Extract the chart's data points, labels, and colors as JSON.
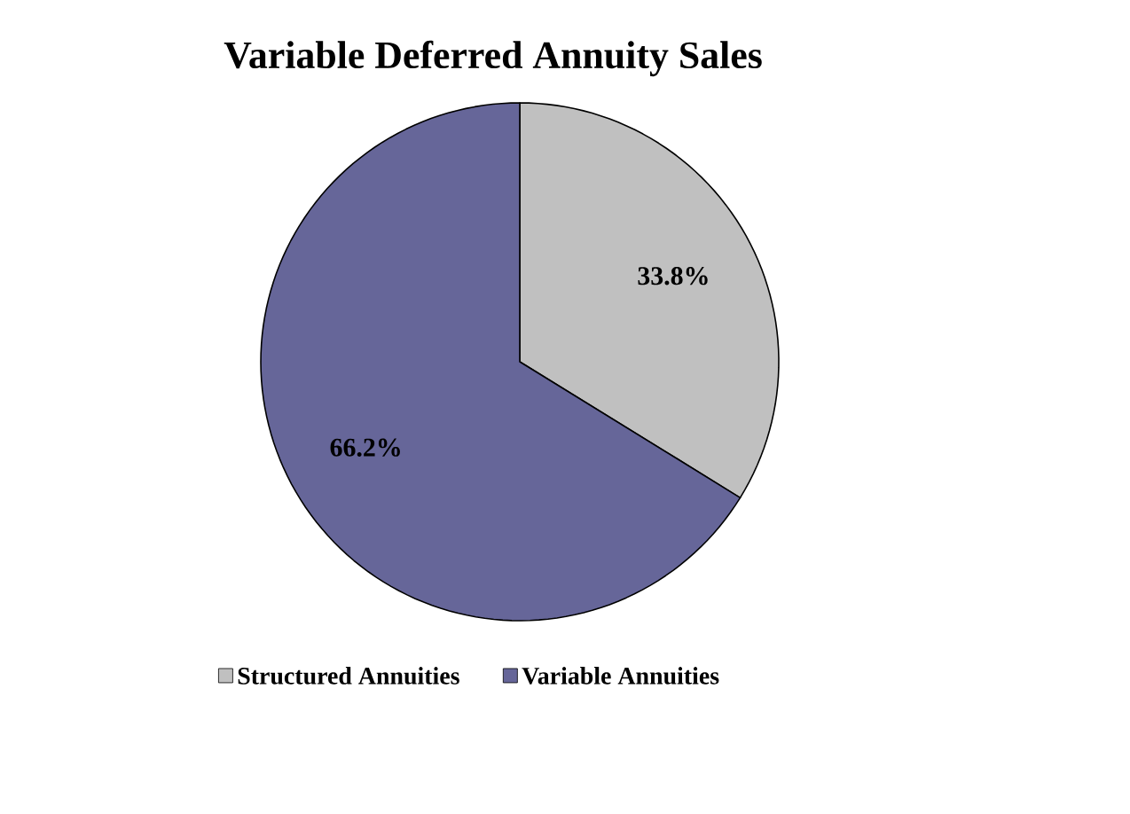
{
  "chart_data": {
    "type": "pie",
    "title": "Variable Deferred Annuity Sales",
    "categories": [
      "Structured Annuities",
      "Variable Annuities"
    ],
    "values": [
      33.8,
      66.2
    ],
    "colors": [
      "#c0c0c0",
      "#666699"
    ],
    "value_labels": [
      "33.8%",
      "66.2%"
    ],
    "legend": "bottom"
  }
}
